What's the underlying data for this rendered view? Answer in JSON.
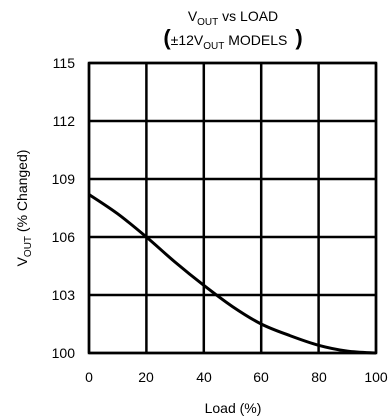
{
  "chart_data": {
    "type": "line",
    "title": {
      "line1_main": "V",
      "line1_sub": "OUT",
      "line1_rest": " vs LOAD",
      "line2_open": "(",
      "line2_main": "±12V",
      "line2_sub": "OUT",
      "line2_rest": "  MODELS",
      "line2_close": ")"
    },
    "xlabel": "Load (%)",
    "ylabel": {
      "main": "V",
      "sub": "OUT",
      "rest": " (% Changed)"
    },
    "xlim": [
      0,
      100
    ],
    "ylim": [
      100,
      115
    ],
    "x_ticks": [
      "0",
      "20",
      "40",
      "60",
      "80",
      "100"
    ],
    "y_ticks": [
      "100",
      "103",
      "106",
      "109",
      "112",
      "115"
    ],
    "grid": true,
    "series": [
      {
        "x": [
          0,
          10,
          20,
          30,
          40,
          50,
          60,
          70,
          80,
          90,
          100
        ],
        "values": [
          108.2,
          107.2,
          106.0,
          104.7,
          103.5,
          102.4,
          101.5,
          100.9,
          100.4,
          100.1,
          100.0
        ]
      }
    ]
  }
}
